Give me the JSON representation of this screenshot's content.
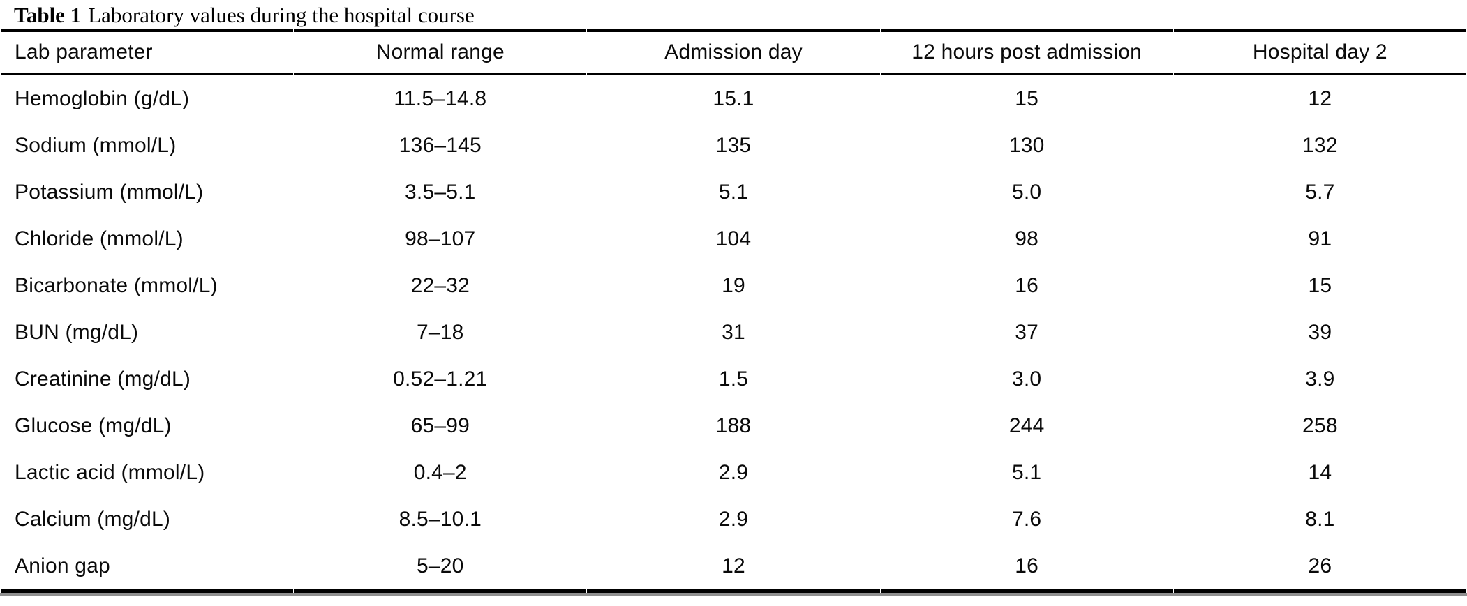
{
  "caption": {
    "label": "Table 1",
    "text": "Laboratory values during the hospital course"
  },
  "table": {
    "columns": [
      "Lab parameter",
      "Normal range",
      "Admission day",
      "12 hours post admission",
      "Hospital day 2"
    ],
    "rows": [
      {
        "cells": [
          "Hemoglobin (g/dL)",
          "11.5–14.8",
          "15.1",
          "15",
          "12"
        ]
      },
      {
        "cells": [
          "Sodium (mmol/L)",
          "136–145",
          "135",
          "130",
          "132"
        ]
      },
      {
        "cells": [
          "Potassium (mmol/L)",
          "3.5–5.1",
          "5.1",
          "5.0",
          "5.7"
        ]
      },
      {
        "cells": [
          "Chloride (mmol/L)",
          "98–107",
          "104",
          "98",
          "91"
        ]
      },
      {
        "cells": [
          "Bicarbonate (mmol/L)",
          "22–32",
          "19",
          "16",
          "15"
        ]
      },
      {
        "cells": [
          "BUN (mg/dL)",
          "7–18",
          "31",
          "37",
          "39"
        ]
      },
      {
        "cells": [
          "Creatinine (mg/dL)",
          "0.52–1.21",
          "1.5",
          "3.0",
          "3.9"
        ]
      },
      {
        "cells": [
          "Glucose (mg/dL)",
          "65–99",
          "188",
          "244",
          "258"
        ]
      },
      {
        "cells": [
          "Lactic acid (mmol/L)",
          "0.4–2",
          "2.9",
          "5.1",
          "14"
        ]
      },
      {
        "cells": [
          "Calcium (mg/dL)",
          "8.5–10.1",
          "2.9",
          "7.6",
          "8.1"
        ]
      },
      {
        "cells": [
          "Anion gap",
          "5–20",
          "12",
          "16",
          "26"
        ]
      }
    ]
  },
  "colors": {
    "text": "#0a0a0a",
    "rule": "#000000",
    "bottom_accent": "#8f8f8f",
    "background": "#ffffff"
  }
}
